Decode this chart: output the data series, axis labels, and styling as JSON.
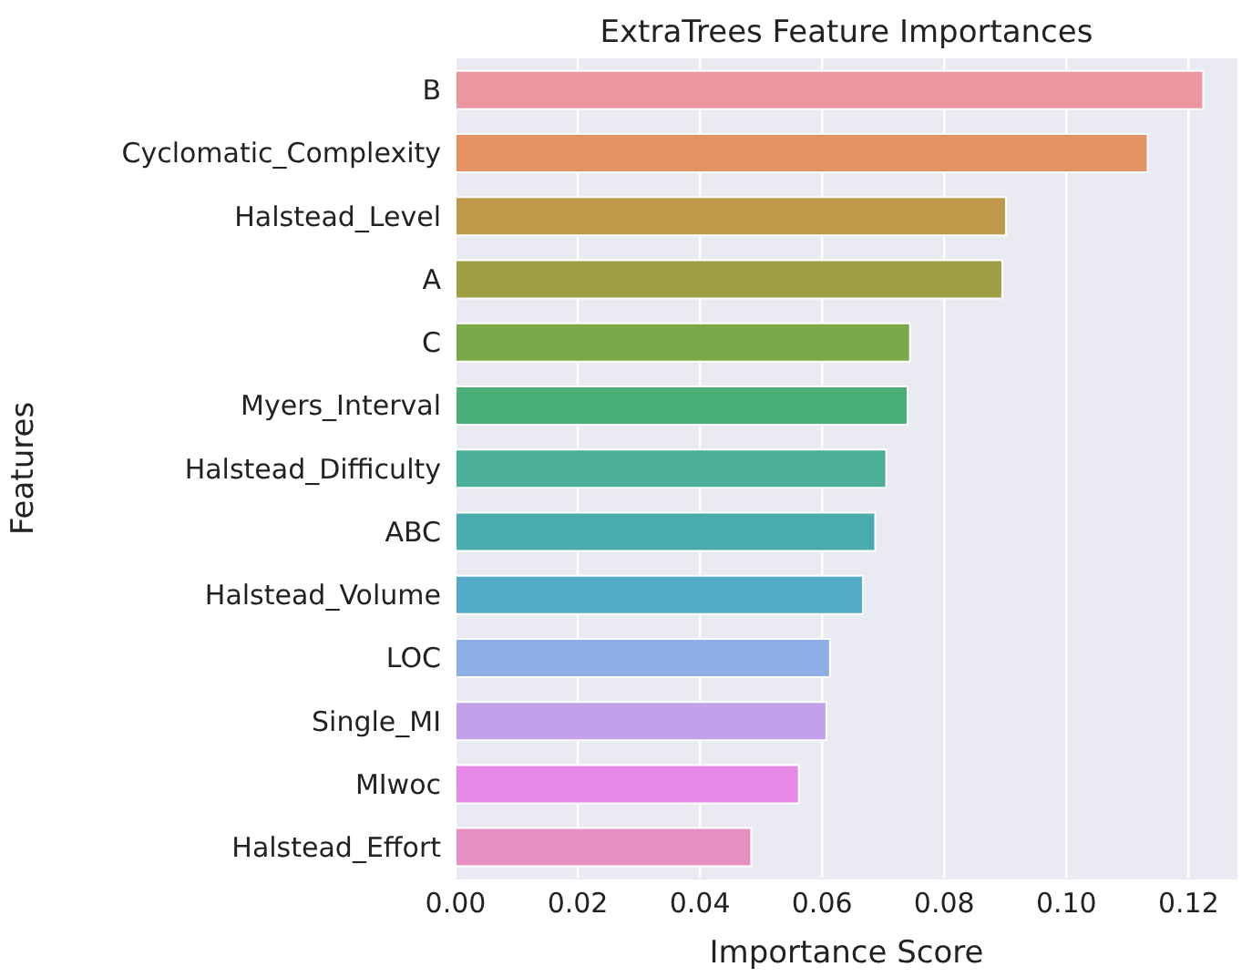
{
  "chart_data": {
    "type": "bar",
    "orientation": "horizontal",
    "title": "ExtraTrees Feature Importances",
    "xlabel": "Importance Score",
    "ylabel": "Features",
    "categories": [
      "B",
      "Cyclomatic_Complexity",
      "Halstead_Level",
      "A",
      "C",
      "Myers_Interval",
      "Halstead_Difficulty",
      "ABC",
      "Halstead_Volume",
      "LOC",
      "Single_MI",
      "MIwoc",
      "Halstead_Effort"
    ],
    "values": [
      0.1224,
      0.1133,
      0.0901,
      0.0895,
      0.0744,
      0.074,
      0.0705,
      0.0687,
      0.0667,
      0.0613,
      0.0607,
      0.0562,
      0.0484
    ],
    "colors": [
      "#ec96a0",
      "#e39362",
      "#c09a4a",
      "#a19f45",
      "#7ba949",
      "#4bb077",
      "#4aae98",
      "#4aabaf",
      "#53abc9",
      "#8eaee6",
      "#c1a1ea",
      "#e588e6",
      "#e890c1"
    ],
    "xlim": [
      0,
      0.128
    ],
    "xticks": [
      {
        "value": 0,
        "label": "0.00"
      },
      {
        "value": 0.02,
        "label": "0.02"
      },
      {
        "value": 0.04,
        "label": "0.04"
      },
      {
        "value": 0.06,
        "label": "0.06"
      },
      {
        "value": 0.08,
        "label": "0.08"
      },
      {
        "value": 0.1,
        "label": "0.10"
      },
      {
        "value": 0.12,
        "label": "0.12"
      }
    ],
    "grid": "x"
  }
}
